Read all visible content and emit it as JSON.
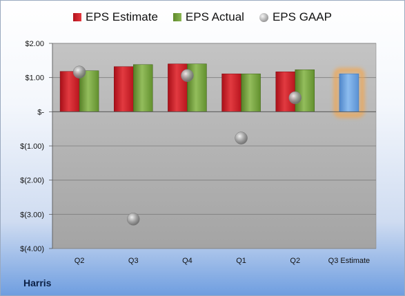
{
  "legend": {
    "estimate": "EPS Estimate",
    "actual": "EPS Actual",
    "gaap": "EPS GAAP"
  },
  "company": "Harris",
  "colors": {
    "estimate": "#d42a30",
    "actual": "#7ca745",
    "gaap": "#a6a6a6",
    "forecast": "#6fa3de",
    "forecast_glow": "#f5a54a"
  },
  "chart_data": {
    "type": "bar",
    "categories": [
      "Q2",
      "Q3",
      "Q4",
      "Q1",
      "Q2",
      "Q3 Estimate"
    ],
    "series": [
      {
        "name": "EPS Estimate",
        "values": [
          1.18,
          1.32,
          1.4,
          1.11,
          1.17,
          null
        ]
      },
      {
        "name": "EPS Actual",
        "values": [
          1.2,
          1.38,
          1.4,
          1.11,
          1.23,
          1.11
        ]
      },
      {
        "name": "EPS GAAP",
        "values": [
          1.16,
          -3.14,
          1.06,
          -0.77,
          0.41,
          null
        ]
      }
    ],
    "forecast_category": "Q3 Estimate",
    "ylim": [
      -4,
      2
    ],
    "yticks": [
      {
        "value": 2,
        "label": "$2.00"
      },
      {
        "value": 1,
        "label": "$1.00"
      },
      {
        "value": 0,
        "label": "$-"
      },
      {
        "value": -1,
        "label": "$(1.00)"
      },
      {
        "value": -2,
        "label": "$(2.00)"
      },
      {
        "value": -3,
        "label": "$(3.00)"
      },
      {
        "value": -4,
        "label": "$(4.00)"
      }
    ],
    "grid": true,
    "legend_position": "top"
  }
}
